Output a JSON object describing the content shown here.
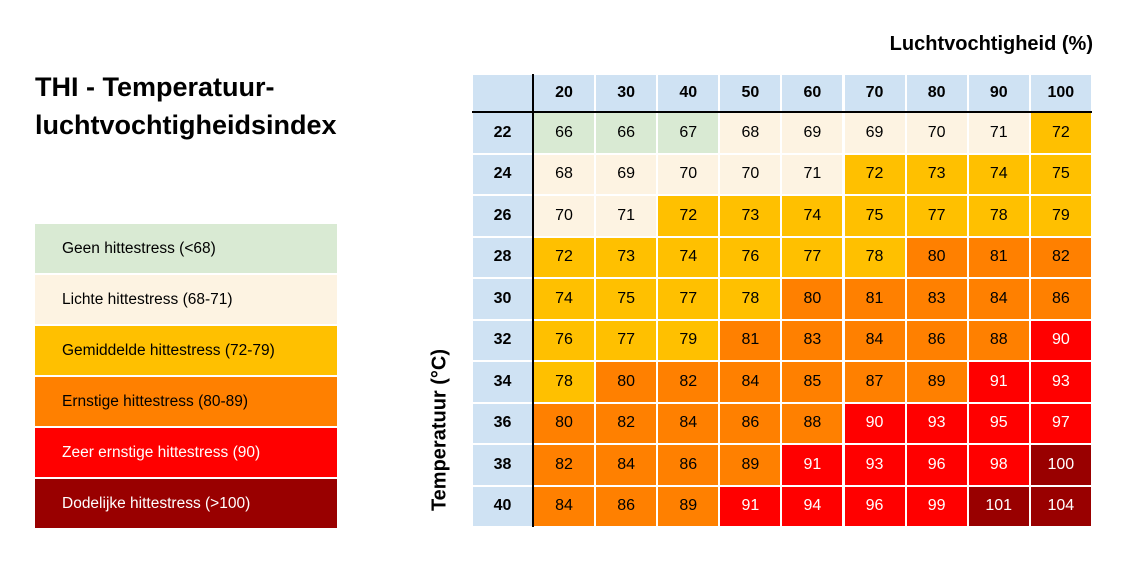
{
  "title": "THI - Temperatuur-luchtvochtigheidsindex",
  "legend": [
    {
      "label": "Geen hittestress (<68)",
      "color": "#d9ead3",
      "text_color": "#000000"
    },
    {
      "label": "Lichte hittestress (68-71)",
      "color": "#fdf3e2",
      "text_color": "#000000"
    },
    {
      "label": "Gemiddelde hittestress (72-79)",
      "color": "#ffc000",
      "text_color": "#000000"
    },
    {
      "label": "Ernstige hittestress (80-89)",
      "color": "#ff8000",
      "text_color": "#000000"
    },
    {
      "label": "Zeer ernstige hittestress (90)",
      "color": "#ff0000",
      "text_color": "#ffffff"
    },
    {
      "label": "Dodelijke hittestress (>100)",
      "color": "#990000",
      "text_color": "#ffffff"
    }
  ],
  "chart_data": {
    "type": "heatmap",
    "xlabel": "Luchtvochtigheid (%)",
    "ylabel": "Temperatuur (°C)",
    "x": [
      "20",
      "30",
      "40",
      "50",
      "60",
      "70",
      "80",
      "90",
      "100"
    ],
    "y": [
      "22",
      "24",
      "26",
      "28",
      "30",
      "32",
      "34",
      "36",
      "38",
      "40"
    ],
    "values": [
      [
        66,
        66,
        67,
        68,
        69,
        69,
        70,
        71,
        72
      ],
      [
        68,
        69,
        70,
        70,
        71,
        72,
        73,
        74,
        75
      ],
      [
        70,
        71,
        72,
        73,
        74,
        75,
        77,
        78,
        79
      ],
      [
        72,
        73,
        74,
        76,
        77,
        78,
        80,
        81,
        82
      ],
      [
        74,
        75,
        77,
        78,
        80,
        81,
        83,
        84,
        86
      ],
      [
        76,
        77,
        79,
        81,
        83,
        84,
        86,
        88,
        90
      ],
      [
        78,
        80,
        82,
        84,
        85,
        87,
        89,
        91,
        93
      ],
      [
        80,
        82,
        84,
        86,
        88,
        90,
        93,
        95,
        97
      ],
      [
        82,
        84,
        86,
        89,
        91,
        93,
        96,
        98,
        100
      ],
      [
        84,
        86,
        89,
        91,
        94,
        96,
        99,
        101,
        104
      ]
    ],
    "header_color": "#cfe2f3"
  }
}
